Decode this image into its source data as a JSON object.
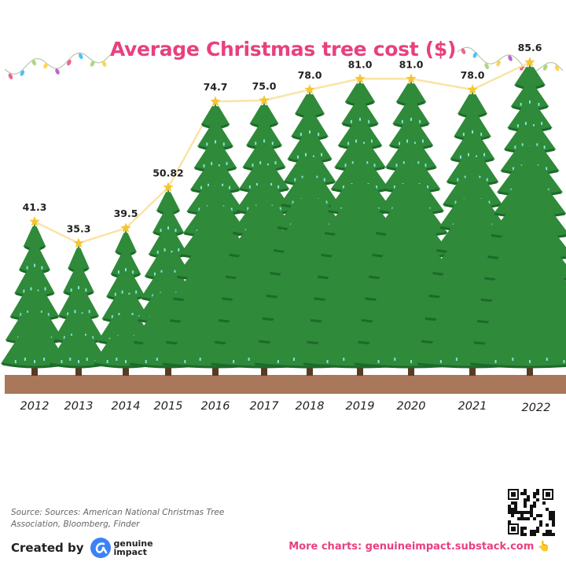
{
  "title": "Average Christmas tree cost  ($)",
  "chart_data": {
    "type": "line",
    "title": "Average Christmas tree cost  ($)",
    "categories": [
      "2012",
      "2013",
      "2014",
      "2015",
      "2016",
      "2017",
      "2018",
      "2019",
      "2020",
      "2021",
      "2022"
    ],
    "values": [
      41.3,
      35.3,
      39.5,
      50.82,
      74.7,
      75.0,
      78.0,
      81.0,
      81.0,
      78.0,
      85.6
    ],
    "value_labels": [
      "41.3",
      "35.3",
      "39.5",
      "50.82",
      "74.7",
      "75.0",
      "78.0",
      "81.0",
      "81.0",
      "78.0",
      "85.6"
    ],
    "ylim": [
      0,
      100
    ],
    "grid": false,
    "marker": "star-topped tree",
    "colors": {
      "title": "#e8407e",
      "tree": "#2f8a3a",
      "tree_dark": "#1d6a2a",
      "ornament": "#7ee6d8",
      "star": "#f7c531",
      "line": "#fbe3a6",
      "ground": "#a9775a",
      "trunk": "#5a3a26"
    }
  },
  "source": "Source: Sources: American National Christmas Tree Association, Bloomberg, Finder",
  "footer": {
    "created_by": "Created by",
    "brand_line1": "genuine",
    "brand_line2": "impact",
    "more_charts": "More charts: genuineimpact.substack.com 👆"
  }
}
